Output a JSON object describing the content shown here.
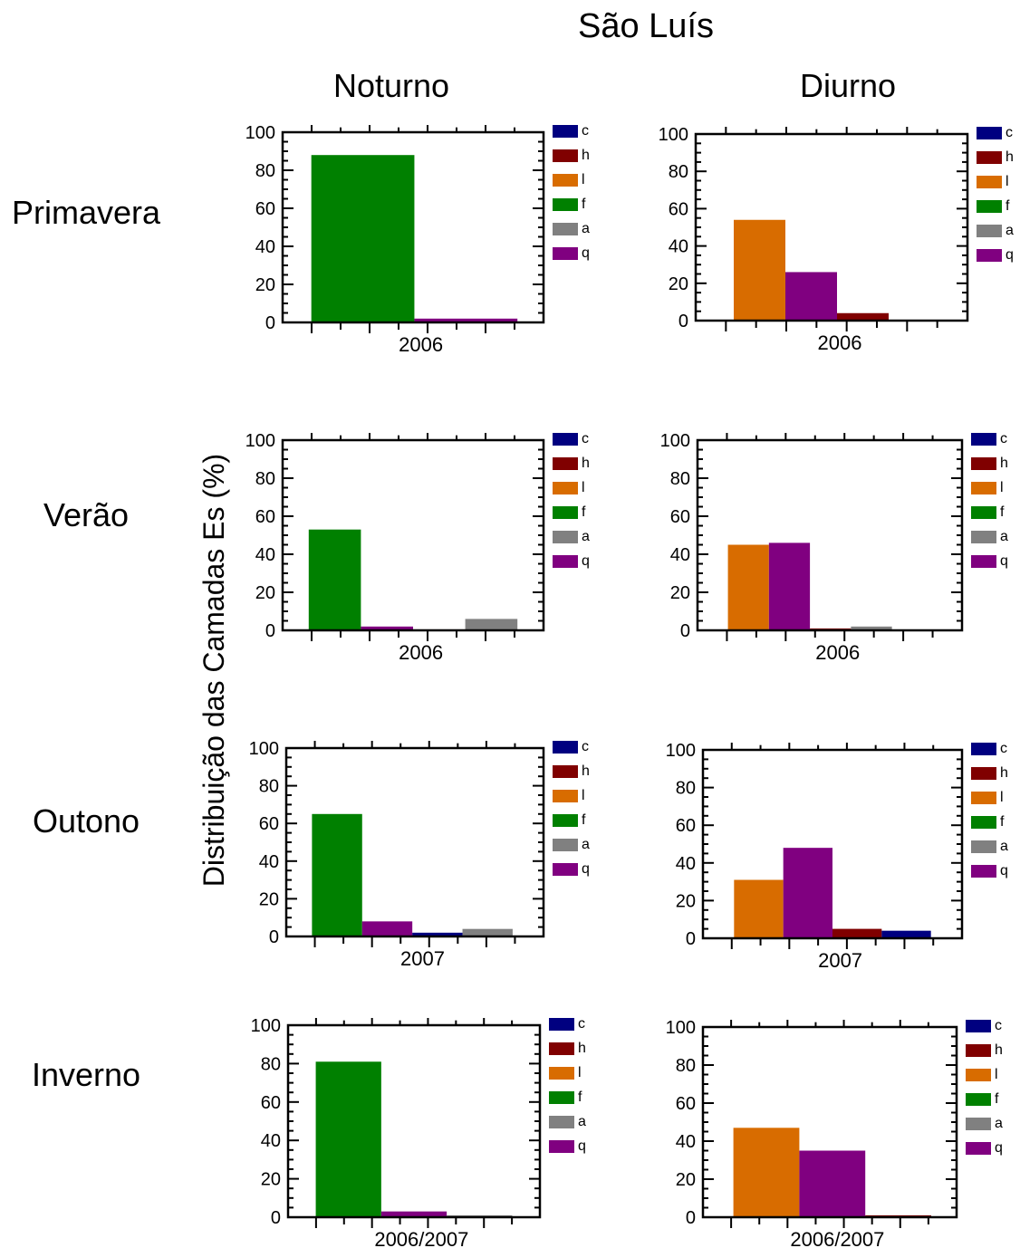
{
  "title": "São Luís",
  "columns": [
    "Noturno",
    "Diurno"
  ],
  "rows": [
    "Primavera",
    "Verão",
    "Outono",
    "Inverno"
  ],
  "ylabel": "Distribuição das Camadas Es (%)",
  "legend": [
    {
      "label": "c",
      "color": "#000080"
    },
    {
      "label": "h",
      "color": "#800000"
    },
    {
      "label": "l",
      "color": "#d86c00"
    },
    {
      "label": "f",
      "color": "#008000"
    },
    {
      "label": "a",
      "color": "#808080"
    },
    {
      "label": "q",
      "color": "#800080"
    }
  ],
  "chart_data": [
    {
      "type": "bar",
      "row": "Primavera",
      "column": "Noturno",
      "category": "2006",
      "ylim": [
        0,
        100
      ],
      "yticks": [
        0,
        20,
        40,
        60,
        80,
        100
      ],
      "bars": [
        {
          "type": "f",
          "value": 88
        },
        {
          "type": "q",
          "value": 2
        }
      ]
    },
    {
      "type": "bar",
      "row": "Primavera",
      "column": "Diurno",
      "category": "2006",
      "ylim": [
        0,
        100
      ],
      "yticks": [
        0,
        20,
        40,
        60,
        80,
        100
      ],
      "bars": [
        {
          "type": "l",
          "value": 54
        },
        {
          "type": "q",
          "value": 26
        },
        {
          "type": "h",
          "value": 4
        }
      ]
    },
    {
      "type": "bar",
      "row": "Verão",
      "column": "Noturno",
      "category": "2006",
      "ylim": [
        0,
        100
      ],
      "yticks": [
        0,
        20,
        40,
        60,
        80,
        100
      ],
      "bars": [
        {
          "type": "f",
          "value": 53
        },
        {
          "type": "q",
          "value": 2
        },
        {
          "type": "h",
          "value": 0.5
        },
        {
          "type": "a",
          "value": 6
        }
      ]
    },
    {
      "type": "bar",
      "row": "Verão",
      "column": "Diurno",
      "category": "2006",
      "ylim": [
        0,
        100
      ],
      "yticks": [
        0,
        20,
        40,
        60,
        80,
        100
      ],
      "bars": [
        {
          "type": "l",
          "value": 45
        },
        {
          "type": "q",
          "value": 46
        },
        {
          "type": "h",
          "value": 1
        },
        {
          "type": "a",
          "value": 2
        }
      ]
    },
    {
      "type": "bar",
      "row": "Outono",
      "column": "Noturno",
      "category": "2007",
      "ylim": [
        0,
        100
      ],
      "yticks": [
        0,
        20,
        40,
        60,
        80,
        100
      ],
      "bars": [
        {
          "type": "f",
          "value": 65
        },
        {
          "type": "q",
          "value": 8
        },
        {
          "type": "c",
          "value": 2
        },
        {
          "type": "a",
          "value": 4
        }
      ]
    },
    {
      "type": "bar",
      "row": "Outono",
      "column": "Diurno",
      "category": "2007",
      "ylim": [
        0,
        100
      ],
      "yticks": [
        0,
        20,
        40,
        60,
        80,
        100
      ],
      "bars": [
        {
          "type": "l",
          "value": 31
        },
        {
          "type": "q",
          "value": 48
        },
        {
          "type": "h",
          "value": 5
        },
        {
          "type": "c",
          "value": 4
        }
      ]
    },
    {
      "type": "bar",
      "row": "Inverno",
      "column": "Noturno",
      "category": "2006/2007",
      "ylim": [
        0,
        100
      ],
      "yticks": [
        0,
        20,
        40,
        60,
        80,
        100
      ],
      "bars": [
        {
          "type": "f",
          "value": 81
        },
        {
          "type": "q",
          "value": 3
        },
        {
          "type": "a",
          "value": 1
        }
      ]
    },
    {
      "type": "bar",
      "row": "Inverno",
      "column": "Diurno",
      "category": "2006/2007",
      "ylim": [
        0,
        100
      ],
      "yticks": [
        0,
        20,
        40,
        60,
        80,
        100
      ],
      "bars": [
        {
          "type": "l",
          "value": 47
        },
        {
          "type": "q",
          "value": 35
        },
        {
          "type": "h",
          "value": 1
        }
      ]
    }
  ]
}
